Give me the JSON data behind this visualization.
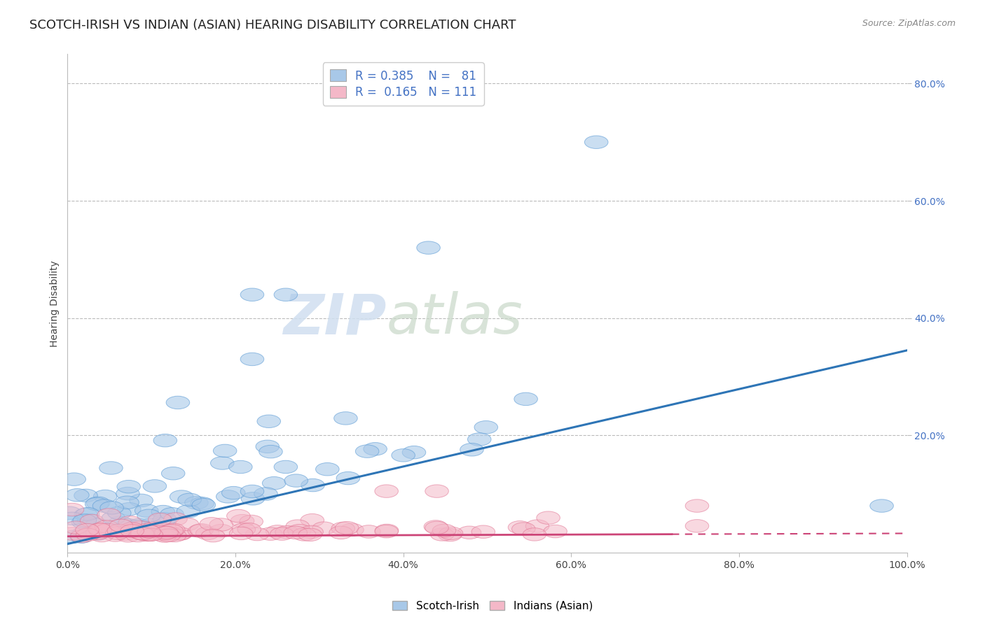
{
  "title": "SCOTCH-IRISH VS INDIAN (ASIAN) HEARING DISABILITY CORRELATION CHART",
  "source": "Source: ZipAtlas.com",
  "ylabel": "Hearing Disability",
  "xlim": [
    0,
    1.0
  ],
  "ylim": [
    0,
    0.85
  ],
  "yticks": [
    0.2,
    0.4,
    0.6,
    0.8
  ],
  "ytick_labels": [
    "20.0%",
    "40.0%",
    "60.0%",
    "80.0%"
  ],
  "xticks": [
    0.0,
    0.2,
    0.4,
    0.6,
    0.8,
    1.0
  ],
  "xtick_labels": [
    "0.0%",
    "20.0%",
    "40.0%",
    "60.0%",
    "80.0%",
    "100.0%"
  ],
  "blue_color": "#a8c8e8",
  "blue_edge_color": "#5b9bd5",
  "pink_color": "#f4b8c8",
  "pink_edge_color": "#e07090",
  "blue_line_color": "#2e75b6",
  "pink_line_color": "#cc4477",
  "label1": "Scotch-Irish",
  "label2": "Indians (Asian)",
  "watermark_zip": "ZIP",
  "watermark_atlas": "atlas",
  "bg_color": "#ffffff",
  "grid_color": "#bbbbbb",
  "title_fontsize": 13,
  "tick_fontsize": 10,
  "legend_fontsize": 12,
  "blue_slope": 0.33,
  "blue_intercept": 0.015,
  "pink_slope": 0.005,
  "pink_intercept": 0.028
}
